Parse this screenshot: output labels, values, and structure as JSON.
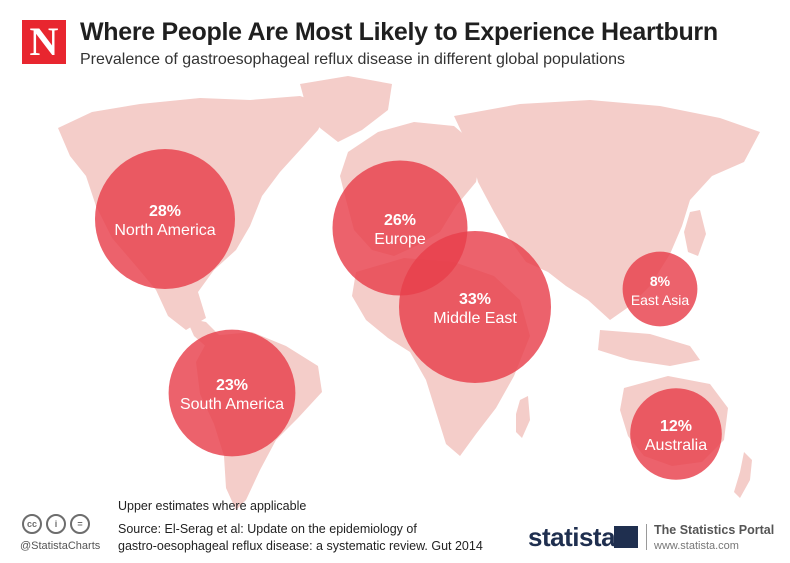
{
  "header": {
    "logo_letter": "N",
    "title": "Where People Are Most Likely to Experience Heartburn",
    "subtitle": "Prevalence of gastroesophageal reflux disease in different global populations"
  },
  "chart_data": {
    "type": "bubble-map",
    "title": "Where People Are Most Likely to Experience Heartburn",
    "subtitle": "Prevalence of gastroesophageal reflux disease in different global populations",
    "unit": "%",
    "regions": [
      {
        "name": "North America",
        "value": 28,
        "label": "28%"
      },
      {
        "name": "Europe",
        "value": 26,
        "label": "26%"
      },
      {
        "name": "Middle East",
        "value": 33,
        "label": "33%"
      },
      {
        "name": "East Asia",
        "value": 8,
        "label": "8%"
      },
      {
        "name": "South America",
        "value": 23,
        "label": "23%"
      },
      {
        "name": "Australia",
        "value": 12,
        "label": "12%"
      }
    ],
    "colors": {
      "bubble": "#e8404c",
      "map": "#f4cdc9",
      "label": "#ffffff"
    }
  },
  "footer": {
    "note": "Upper estimates where applicable",
    "source_line1": "Source: El-Serag et al: Update on the epidemiology of",
    "source_line2": "gastro-oesophageal reflux disease: a systematic review. Gut 2014",
    "cc_icons": [
      "cc",
      "i",
      "="
    ],
    "handle": "@StatistaCharts",
    "brand": "statista",
    "portal": "The Statistics Portal",
    "portal_url": "www.statista.com"
  }
}
